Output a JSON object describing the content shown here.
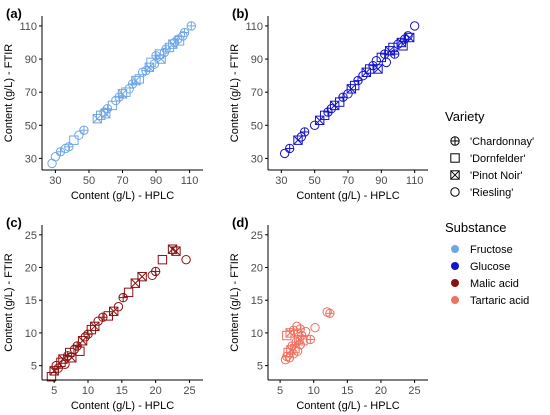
{
  "chart_data": [
    {
      "type": "scatter",
      "panel": "(a)",
      "substance": "Fructose",
      "color": "#6fa6e6",
      "xlabel": "Content (g/L) - HPLC",
      "ylabel": "Content (g/L) - FTIR",
      "xlim": [
        22,
        118
      ],
      "ylim": [
        23,
        116
      ],
      "xticks": [
        30,
        50,
        70,
        90,
        110
      ],
      "yticks": [
        30,
        50,
        70,
        90,
        110
      ],
      "points": [
        {
          "x": 28,
          "y": 27,
          "v": "Riesling"
        },
        {
          "x": 30,
          "y": 31,
          "v": "Riesling"
        },
        {
          "x": 33,
          "y": 34,
          "v": "Chardonnay"
        },
        {
          "x": 36,
          "y": 36,
          "v": "Riesling"
        },
        {
          "x": 38,
          "y": 37,
          "v": "Chardonnay"
        },
        {
          "x": 41,
          "y": 41,
          "v": "Dornfelder"
        },
        {
          "x": 44,
          "y": 44,
          "v": "Riesling"
        },
        {
          "x": 47,
          "y": 47,
          "v": "Chardonnay"
        },
        {
          "x": 55,
          "y": 54,
          "v": "Pinot Noir"
        },
        {
          "x": 57,
          "y": 56,
          "v": "Dornfelder"
        },
        {
          "x": 59,
          "y": 58,
          "v": "Riesling"
        },
        {
          "x": 61,
          "y": 60,
          "v": "Chardonnay"
        },
        {
          "x": 60,
          "y": 57,
          "v": "Pinot Noir"
        },
        {
          "x": 64,
          "y": 62,
          "v": "Dornfelder"
        },
        {
          "x": 66,
          "y": 65,
          "v": "Riesling"
        },
        {
          "x": 68,
          "y": 67,
          "v": "Chardonnay"
        },
        {
          "x": 70,
          "y": 69,
          "v": "Pinot Noir"
        },
        {
          "x": 72,
          "y": 70,
          "v": "Dornfelder"
        },
        {
          "x": 74,
          "y": 72,
          "v": "Riesling"
        },
        {
          "x": 76,
          "y": 75,
          "v": "Chardonnay"
        },
        {
          "x": 78,
          "y": 77,
          "v": "Pinot Noir"
        },
        {
          "x": 80,
          "y": 78,
          "v": "Dornfelder"
        },
        {
          "x": 82,
          "y": 82,
          "v": "Riesling"
        },
        {
          "x": 84,
          "y": 83,
          "v": "Chardonnay"
        },
        {
          "x": 86,
          "y": 85,
          "v": "Pinot Noir"
        },
        {
          "x": 87,
          "y": 88,
          "v": "Dornfelder"
        },
        {
          "x": 89,
          "y": 87,
          "v": "Riesling"
        },
        {
          "x": 90,
          "y": 92,
          "v": "Chardonnay"
        },
        {
          "x": 92,
          "y": 93,
          "v": "Dornfelder"
        },
        {
          "x": 93,
          "y": 90,
          "v": "Pinot Noir"
        },
        {
          "x": 95,
          "y": 94,
          "v": "Riesling"
        },
        {
          "x": 96,
          "y": 96,
          "v": "Chardonnay"
        },
        {
          "x": 98,
          "y": 97,
          "v": "Dornfelder"
        },
        {
          "x": 100,
          "y": 99,
          "v": "Pinot Noir"
        },
        {
          "x": 101,
          "y": 100,
          "v": "Riesling"
        },
        {
          "x": 103,
          "y": 102,
          "v": "Chardonnay"
        },
        {
          "x": 104,
          "y": 101,
          "v": "Dornfelder"
        },
        {
          "x": 106,
          "y": 104,
          "v": "Riesling"
        },
        {
          "x": 107,
          "y": 106,
          "v": "Chardonnay"
        },
        {
          "x": 111,
          "y": 110,
          "v": "Chardonnay"
        }
      ]
    },
    {
      "type": "scatter",
      "panel": "(b)",
      "substance": "Glucose",
      "color": "#1414c8",
      "xlabel": "Content (g/L) - HPLC",
      "ylabel": "Content (g/L) - FTIR",
      "xlim": [
        22,
        118
      ],
      "ylim": [
        23,
        116
      ],
      "xticks": [
        30,
        50,
        70,
        90,
        110
      ],
      "yticks": [
        30,
        50,
        70,
        90,
        110
      ],
      "points": [
        {
          "x": 32,
          "y": 33,
          "v": "Riesling"
        },
        {
          "x": 35,
          "y": 36,
          "v": "Chardonnay"
        },
        {
          "x": 40,
          "y": 41,
          "v": "Pinot Noir"
        },
        {
          "x": 42,
          "y": 43,
          "v": "Riesling"
        },
        {
          "x": 44,
          "y": 46,
          "v": "Chardonnay"
        },
        {
          "x": 50,
          "y": 50,
          "v": "Riesling"
        },
        {
          "x": 53,
          "y": 53,
          "v": "Pinot Noir"
        },
        {
          "x": 56,
          "y": 56,
          "v": "Dornfelder"
        },
        {
          "x": 58,
          "y": 58,
          "v": "Chardonnay"
        },
        {
          "x": 60,
          "y": 60,
          "v": "Riesling"
        },
        {
          "x": 62,
          "y": 62,
          "v": "Pinot Noir"
        },
        {
          "x": 65,
          "y": 64,
          "v": "Dornfelder"
        },
        {
          "x": 67,
          "y": 67,
          "v": "Chardonnay"
        },
        {
          "x": 70,
          "y": 69,
          "v": "Riesling"
        },
        {
          "x": 72,
          "y": 72,
          "v": "Pinot Noir"
        },
        {
          "x": 74,
          "y": 74,
          "v": "Dornfelder"
        },
        {
          "x": 76,
          "y": 77,
          "v": "Chardonnay"
        },
        {
          "x": 79,
          "y": 80,
          "v": "Riesling"
        },
        {
          "x": 81,
          "y": 82,
          "v": "Pinot Noir"
        },
        {
          "x": 83,
          "y": 84,
          "v": "Dornfelder"
        },
        {
          "x": 85,
          "y": 86,
          "v": "Chardonnay"
        },
        {
          "x": 87,
          "y": 89,
          "v": "Riesling"
        },
        {
          "x": 88,
          "y": 84,
          "v": "Pinot Noir"
        },
        {
          "x": 90,
          "y": 91,
          "v": "Dornfelder"
        },
        {
          "x": 92,
          "y": 93,
          "v": "Chardonnay"
        },
        {
          "x": 93,
          "y": 88,
          "v": "Riesling"
        },
        {
          "x": 95,
          "y": 95,
          "v": "Pinot Noir"
        },
        {
          "x": 97,
          "y": 97,
          "v": "Dornfelder"
        },
        {
          "x": 98,
          "y": 93,
          "v": "Chardonnay"
        },
        {
          "x": 100,
          "y": 99,
          "v": "Riesling"
        },
        {
          "x": 102,
          "y": 100,
          "v": "Pinot Noir"
        },
        {
          "x": 103,
          "y": 98,
          "v": "Dornfelder"
        },
        {
          "x": 104,
          "y": 102,
          "v": "Chardonnay"
        },
        {
          "x": 106,
          "y": 104,
          "v": "Riesling"
        },
        {
          "x": 107,
          "y": 103,
          "v": "Pinot Noir"
        },
        {
          "x": 110,
          "y": 110,
          "v": "Riesling"
        }
      ]
    },
    {
      "type": "scatter",
      "panel": "(c)",
      "substance": "Malic acid",
      "color": "#8b1010",
      "xlabel": "Content (g/L) - HPLC",
      "ylabel": "Content (g/L) - FTIR",
      "xlim": [
        3.2,
        27
      ],
      "ylim": [
        2.8,
        26.5
      ],
      "xticks": [
        5,
        10,
        15,
        20,
        25
      ],
      "yticks": [
        5,
        10,
        15,
        20,
        25
      ],
      "points": [
        {
          "x": 4.6,
          "y": 3.3,
          "v": "Dornfelder"
        },
        {
          "x": 5.0,
          "y": 4.2,
          "v": "Pinot Noir"
        },
        {
          "x": 5.3,
          "y": 5.0,
          "v": "Riesling"
        },
        {
          "x": 5.6,
          "y": 4.6,
          "v": "Chardonnay"
        },
        {
          "x": 6.0,
          "y": 5.5,
          "v": "Dornfelder"
        },
        {
          "x": 6.3,
          "y": 6.0,
          "v": "Pinot Noir"
        },
        {
          "x": 6.6,
          "y": 5.2,
          "v": "Riesling"
        },
        {
          "x": 7.0,
          "y": 6.5,
          "v": "Chardonnay"
        },
        {
          "x": 7.3,
          "y": 7.0,
          "v": "Dornfelder"
        },
        {
          "x": 7.6,
          "y": 6.2,
          "v": "Pinot Noir"
        },
        {
          "x": 8.0,
          "y": 7.5,
          "v": "Riesling"
        },
        {
          "x": 8.4,
          "y": 8.0,
          "v": "Chardonnay"
        },
        {
          "x": 8.8,
          "y": 7.2,
          "v": "Dornfelder"
        },
        {
          "x": 9.2,
          "y": 8.8,
          "v": "Pinot Noir"
        },
        {
          "x": 9.6,
          "y": 9.4,
          "v": "Riesling"
        },
        {
          "x": 10.0,
          "y": 9.8,
          "v": "Chardonnay"
        },
        {
          "x": 10.5,
          "y": 10.5,
          "v": "Dornfelder"
        },
        {
          "x": 11.0,
          "y": 11.0,
          "v": "Pinot Noir"
        },
        {
          "x": 11.5,
          "y": 11.8,
          "v": "Riesling"
        },
        {
          "x": 12.2,
          "y": 12.4,
          "v": "Chardonnay"
        },
        {
          "x": 13.0,
          "y": 12.6,
          "v": "Dornfelder"
        },
        {
          "x": 13.8,
          "y": 13.3,
          "v": "Pinot Noir"
        },
        {
          "x": 14.5,
          "y": 14.0,
          "v": "Riesling"
        },
        {
          "x": 15.2,
          "y": 15.4,
          "v": "Chardonnay"
        },
        {
          "x": 16.0,
          "y": 16.2,
          "v": "Dornfelder"
        },
        {
          "x": 17.0,
          "y": 17.6,
          "v": "Pinot Noir"
        },
        {
          "x": 18.0,
          "y": 18.6,
          "v": "Pinot Noir"
        },
        {
          "x": 19.5,
          "y": 18.8,
          "v": "Riesling"
        },
        {
          "x": 20.0,
          "y": 19.4,
          "v": "Chardonnay"
        },
        {
          "x": 21.0,
          "y": 21.2,
          "v": "Dornfelder"
        },
        {
          "x": 22.5,
          "y": 22.8,
          "v": "Pinot Noir"
        },
        {
          "x": 23.0,
          "y": 22.5,
          "v": "Pinot Noir"
        },
        {
          "x": 24.5,
          "y": 21.2,
          "v": "Riesling"
        }
      ]
    },
    {
      "type": "scatter",
      "panel": "(d)",
      "substance": "Tartaric acid",
      "color": "#f07060",
      "xlabel": "Content (g/L) - HPLC",
      "ylabel": "Content (g/L) - FTIR",
      "xlim": [
        3.2,
        27
      ],
      "ylim": [
        2.8,
        26.5
      ],
      "xticks": [
        5,
        10,
        15,
        20,
        25
      ],
      "yticks": [
        5,
        10,
        15,
        20,
        25
      ],
      "points": [
        {
          "x": 5.8,
          "y": 5.9,
          "v": "Riesling"
        },
        {
          "x": 6.0,
          "y": 6.4,
          "v": "Chardonnay"
        },
        {
          "x": 6.2,
          "y": 7.0,
          "v": "Dornfelder"
        },
        {
          "x": 6.4,
          "y": 6.2,
          "v": "Riesling"
        },
        {
          "x": 6.6,
          "y": 7.4,
          "v": "Pinot Noir"
        },
        {
          "x": 6.8,
          "y": 8.0,
          "v": "Chardonnay"
        },
        {
          "x": 7.0,
          "y": 6.8,
          "v": "Riesling"
        },
        {
          "x": 7.2,
          "y": 7.6,
          "v": "Dornfelder"
        },
        {
          "x": 7.4,
          "y": 8.6,
          "v": "Chardonnay"
        },
        {
          "x": 7.6,
          "y": 7.2,
          "v": "Riesling"
        },
        {
          "x": 7.8,
          "y": 9.0,
          "v": "Pinot Noir"
        },
        {
          "x": 8.0,
          "y": 8.2,
          "v": "Riesling"
        },
        {
          "x": 8.2,
          "y": 9.6,
          "v": "Chardonnay"
        },
        {
          "x": 8.4,
          "y": 8.8,
          "v": "Dornfelder"
        },
        {
          "x": 6.0,
          "y": 9.6,
          "v": "Dornfelder"
        },
        {
          "x": 6.5,
          "y": 10.0,
          "v": "Pinot Noir"
        },
        {
          "x": 7.0,
          "y": 10.4,
          "v": "Chardonnay"
        },
        {
          "x": 7.5,
          "y": 11.0,
          "v": "Riesling"
        },
        {
          "x": 8.0,
          "y": 10.6,
          "v": "Chardonnay"
        },
        {
          "x": 8.8,
          "y": 10.2,
          "v": "Riesling"
        },
        {
          "x": 9.5,
          "y": 9.0,
          "v": "Chardonnay"
        },
        {
          "x": 10.2,
          "y": 10.8,
          "v": "Riesling"
        },
        {
          "x": 12.0,
          "y": 13.2,
          "v": "Riesling"
        },
        {
          "x": 12.4,
          "y": 13.0,
          "v": "Chardonnay"
        }
      ]
    }
  ],
  "legend": {
    "variety_title": "Variety",
    "variety_items": [
      {
        "label": "'Chardonnay'",
        "shape": "Chardonnay"
      },
      {
        "label": "'Dornfelder'",
        "shape": "Dornfelder"
      },
      {
        "label": "'Pinot Noir'",
        "shape": "Pinot Noir"
      },
      {
        "label": "'Riesling'",
        "shape": "Riesling"
      }
    ],
    "substance_title": "Substance",
    "substance_items": [
      {
        "label": "Fructose",
        "color": "#6fa6e6"
      },
      {
        "label": "Glucose",
        "color": "#1414c8"
      },
      {
        "label": "Malic acid",
        "color": "#8b1010"
      },
      {
        "label": "Tartaric acid",
        "color": "#f07060"
      }
    ]
  }
}
